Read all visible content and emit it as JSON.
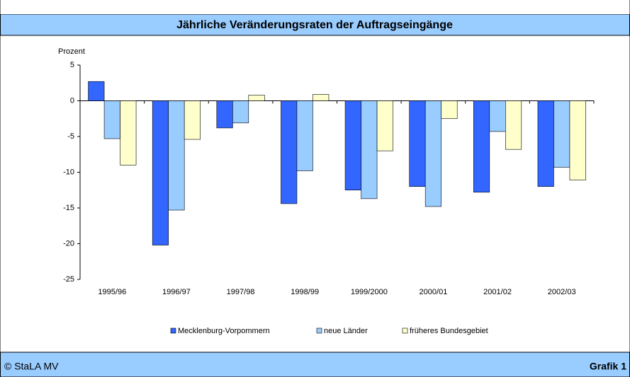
{
  "chart_data": {
    "type": "bar",
    "title": "Jährliche Veränderungsraten der Auftragseingänge",
    "y_label": "Prozent",
    "categories": [
      "1995/96",
      "1996/97",
      "1997/98",
      "1998/99",
      "1999/2000",
      "2000/01",
      "2001/02",
      "2002/03"
    ],
    "series": [
      {
        "name": "Mecklenburg-Vorpommern",
        "color": "#3366ff",
        "values": [
          2.7,
          -20.2,
          -3.8,
          -14.4,
          -12.5,
          -12.0,
          -12.8,
          -12.0
        ]
      },
      {
        "name": "neue Länder",
        "color": "#99ccff",
        "values": [
          -5.3,
          -15.3,
          -3.1,
          -9.8,
          -13.7,
          -14.8,
          -4.3,
          -9.3
        ]
      },
      {
        "name": "früheres Bundesgebiet",
        "color": "#ffffcc",
        "values": [
          -9.0,
          -5.4,
          0.8,
          0.9,
          -7.0,
          -2.5,
          -6.8,
          -11.1
        ]
      }
    ],
    "ylim": [
      -25,
      5
    ],
    "yticks": [
      5,
      0,
      -5,
      -10,
      -15,
      -20,
      -25
    ],
    "legend": "bottom",
    "source": "© StaLA MV",
    "figure_label": "Grafik 1"
  }
}
